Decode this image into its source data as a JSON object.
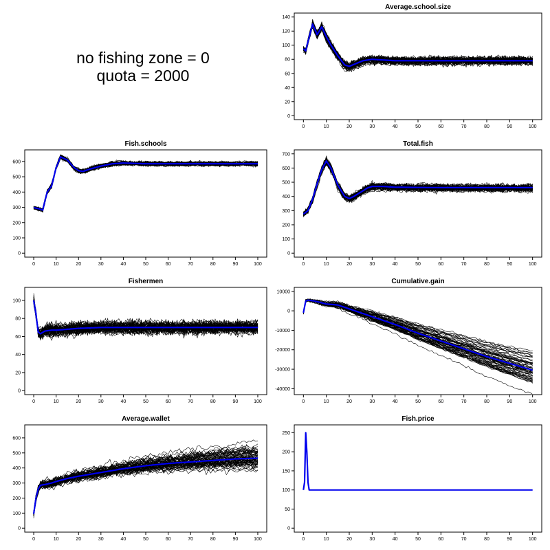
{
  "header": {
    "line1": "no fishing zone = 0",
    "line2": "quota = 2000"
  },
  "colors": {
    "ensemble": "#000000",
    "mean": "#0000ee",
    "background": "#ffffff"
  },
  "chart_data": [
    {
      "key": "average_school_size",
      "type": "line",
      "title": "Average.school.size",
      "x_ticks": [
        0,
        10,
        20,
        30,
        40,
        50,
        60,
        70,
        80,
        90,
        100
      ],
      "y_ticks": [
        0,
        20,
        40,
        60,
        80,
        100,
        120,
        140
      ],
      "xlim": [
        0,
        100
      ],
      "ylim": [
        0,
        140
      ],
      "mean_series": {
        "x": [
          0,
          1,
          2,
          4,
          6,
          8,
          10,
          12,
          15,
          18,
          20,
          23,
          26,
          30,
          35,
          40,
          50,
          60,
          70,
          80,
          90,
          100
        ],
        "y": [
          95,
          92,
          105,
          130,
          115,
          126,
          112,
          100,
          85,
          72,
          70,
          74,
          78,
          80,
          79,
          78,
          78,
          78,
          78,
          78,
          78,
          78
        ]
      },
      "ensemble": {
        "runs": 60,
        "spread": 4,
        "drift": 0
      }
    },
    {
      "key": "fish_schools",
      "type": "line",
      "title": "Fish.schools",
      "x_ticks": [
        0,
        10,
        20,
        30,
        40,
        50,
        60,
        70,
        80,
        90,
        100
      ],
      "y_ticks": [
        0,
        100,
        200,
        300,
        400,
        500,
        600
      ],
      "xlim": [
        0,
        100
      ],
      "ylim": [
        0,
        650
      ],
      "mean_series": {
        "x": [
          0,
          2,
          4,
          6,
          8,
          10,
          12,
          15,
          18,
          20,
          22,
          25,
          30,
          35,
          40,
          50,
          60,
          70,
          80,
          90,
          100
        ],
        "y": [
          298,
          292,
          282,
          400,
          440,
          560,
          630,
          610,
          560,
          540,
          535,
          550,
          570,
          585,
          590,
          585,
          585,
          585,
          585,
          585,
          585
        ]
      },
      "ensemble": {
        "runs": 60,
        "spread": 10,
        "drift": 0
      }
    },
    {
      "key": "total_fish",
      "type": "line",
      "title": "Total.fish",
      "x_ticks": [
        0,
        10,
        20,
        30,
        40,
        50,
        60,
        70,
        80,
        90,
        100
      ],
      "y_ticks": [
        0,
        100,
        200,
        300,
        400,
        500,
        600,
        700
      ],
      "xlim": [
        0,
        100
      ],
      "ylim": [
        0,
        700
      ],
      "mean_series": {
        "x": [
          0,
          2,
          4,
          6,
          8,
          10,
          12,
          15,
          18,
          20,
          22,
          25,
          28,
          30,
          35,
          40,
          50,
          60,
          70,
          80,
          90,
          100
        ],
        "y": [
          275,
          300,
          380,
          490,
          590,
          650,
          600,
          480,
          400,
          385,
          400,
          430,
          460,
          470,
          470,
          465,
          463,
          462,
          462,
          462,
          462,
          462
        ]
      },
      "ensemble": {
        "runs": 60,
        "spread": 18,
        "drift": 0
      }
    },
    {
      "key": "fishermen",
      "type": "line",
      "title": "Fishermen",
      "x_ticks": [
        0,
        10,
        20,
        30,
        40,
        50,
        60,
        70,
        80,
        90,
        100
      ],
      "y_ticks": [
        0,
        20,
        40,
        60,
        80,
        100
      ],
      "xlim": [
        0,
        100
      ],
      "ylim": [
        0,
        110
      ],
      "mean_series": {
        "x": [
          0,
          1,
          2,
          3,
          5,
          8,
          10,
          15,
          20,
          30,
          40,
          50,
          60,
          70,
          80,
          90,
          100
        ],
        "y": [
          100,
          85,
          65,
          63,
          66,
          67,
          67,
          68,
          69,
          70,
          70,
          70,
          70,
          70,
          70,
          70,
          70
        ]
      },
      "ensemble": {
        "runs": 60,
        "spread": 5,
        "drift": 0
      }
    },
    {
      "key": "cumulative_gain",
      "type": "line",
      "title": "Cumulative.gain",
      "x_ticks": [
        0,
        10,
        20,
        30,
        40,
        50,
        60,
        70,
        80,
        90,
        100
      ],
      "y_ticks": [
        -40000,
        -30000,
        -20000,
        -10000,
        0,
        10000
      ],
      "xlim": [
        0,
        100
      ],
      "ylim": [
        -41000,
        10000
      ],
      "mean_series": {
        "x": [
          0,
          1,
          2,
          5,
          10,
          15,
          20,
          30,
          40,
          50,
          60,
          70,
          80,
          90,
          100
        ],
        "y": [
          -1000,
          5000,
          5500,
          5000,
          3500,
          3000,
          1000,
          -3000,
          -7000,
          -11500,
          -15500,
          -19500,
          -23500,
          -27000,
          -30500
        ]
      },
      "ensemble": {
        "runs": 60,
        "spread": 600,
        "drift": 90
      }
    },
    {
      "key": "average_wallet",
      "type": "line",
      "title": "Average.wallet",
      "x_ticks": [
        0,
        10,
        20,
        30,
        40,
        50,
        60,
        70,
        80,
        90,
        100
      ],
      "y_ticks": [
        0,
        100,
        200,
        300,
        400,
        500,
        600
      ],
      "xlim": [
        0,
        100
      ],
      "ylim": [
        0,
        660
      ],
      "mean_series": {
        "x": [
          0,
          1,
          2,
          3,
          5,
          8,
          10,
          15,
          20,
          30,
          40,
          50,
          60,
          70,
          80,
          90,
          100
        ],
        "y": [
          95,
          200,
          260,
          285,
          290,
          300,
          310,
          330,
          345,
          370,
          395,
          415,
          430,
          440,
          450,
          460,
          465
        ]
      },
      "ensemble": {
        "runs": 60,
        "spread": 20,
        "drift": 0.7
      }
    },
    {
      "key": "fish_price",
      "type": "line",
      "title": "Fish.price",
      "x_ticks": [
        0,
        10,
        20,
        30,
        40,
        50,
        60,
        70,
        80,
        90,
        100
      ],
      "y_ticks": [
        0,
        50,
        100,
        150,
        200,
        250
      ],
      "xlim": [
        0,
        100
      ],
      "ylim": [
        0,
        260
      ],
      "mean_series": {
        "x": [
          0,
          0.5,
          1,
          1.5,
          2,
          2.5,
          100
        ],
        "y": [
          100,
          120,
          250,
          200,
          120,
          100,
          100
        ]
      },
      "ensemble": {
        "runs": 0,
        "spread": 0,
        "drift": 0
      }
    }
  ]
}
